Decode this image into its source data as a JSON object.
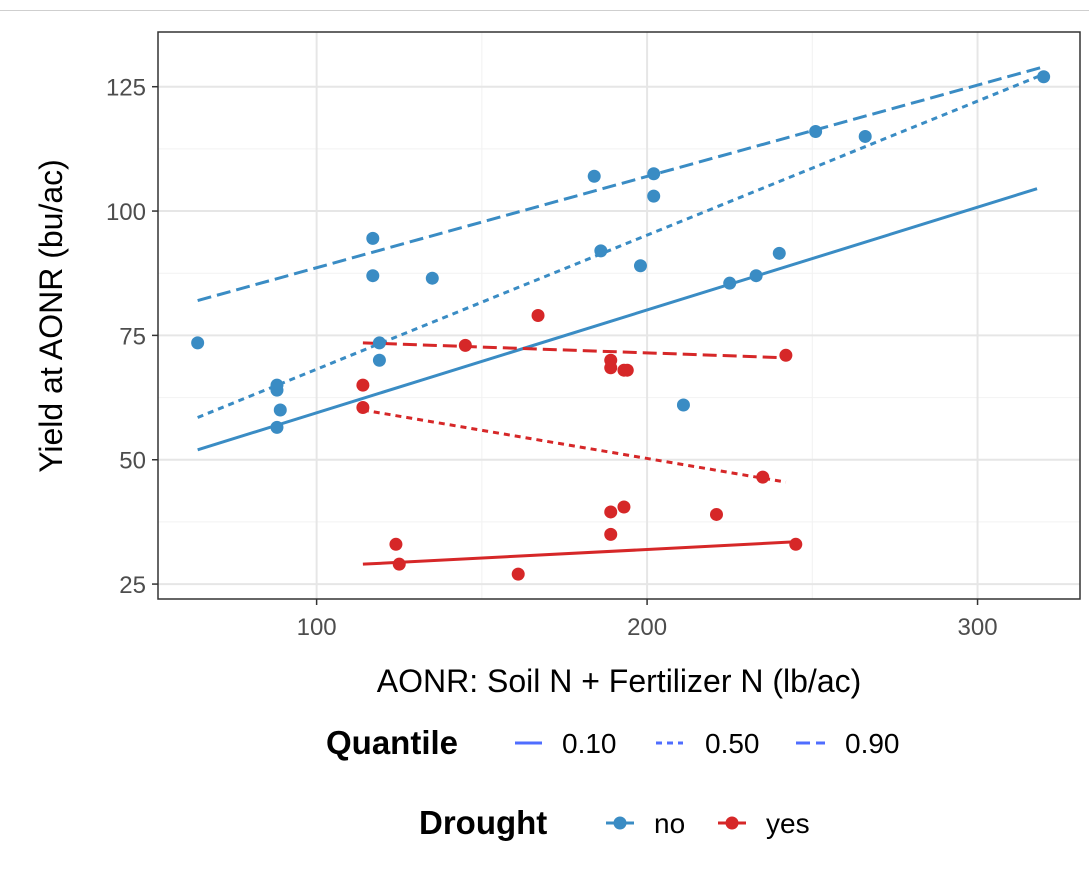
{
  "chart_data": {
    "type": "scatter",
    "title": "",
    "xlabel": "AONR: Soil N + Fertilizer N (lb/ac)",
    "ylabel": "Yield at AONR (bu/ac)",
    "xlim": [
      52,
      331
    ],
    "ylim": [
      22,
      136
    ],
    "xticks": [
      100,
      200,
      300
    ],
    "yticks": [
      25,
      50,
      75,
      100,
      125
    ],
    "grid": true,
    "colors": {
      "no": "#3a8cc4",
      "yes": "#d62728",
      "legend_line": "#4f6dff"
    },
    "series": [
      {
        "name": "no",
        "points": [
          [
            64,
            73.5
          ],
          [
            88,
            65
          ],
          [
            88,
            64
          ],
          [
            88,
            56.5
          ],
          [
            89,
            60
          ],
          [
            117,
            94.5
          ],
          [
            117,
            87
          ],
          [
            119,
            73.5
          ],
          [
            119,
            70
          ],
          [
            135,
            86.5
          ],
          [
            184,
            107
          ],
          [
            186,
            92
          ],
          [
            198,
            89
          ],
          [
            202,
            107.5
          ],
          [
            202,
            103
          ],
          [
            211,
            61
          ],
          [
            225,
            85.5
          ],
          [
            233,
            87
          ],
          [
            240,
            91.5
          ],
          [
            251,
            116
          ],
          [
            266,
            115
          ],
          [
            320,
            127
          ]
        ]
      },
      {
        "name": "yes",
        "points": [
          [
            114,
            65
          ],
          [
            114,
            60.5
          ],
          [
            124,
            33
          ],
          [
            125,
            29
          ],
          [
            145,
            73
          ],
          [
            161,
            27
          ],
          [
            167,
            79
          ],
          [
            189,
            70
          ],
          [
            189,
            68.5
          ],
          [
            189,
            39.5
          ],
          [
            189,
            35
          ],
          [
            193,
            68
          ],
          [
            193,
            40.5
          ],
          [
            194,
            68
          ],
          [
            221,
            39
          ],
          [
            235,
            46.5
          ],
          [
            242,
            71
          ],
          [
            245,
            33
          ]
        ]
      }
    ],
    "quantile_lines": [
      {
        "group": "no",
        "quantile": "0.10",
        "x": [
          64,
          318
        ],
        "y": [
          52,
          104.5
        ]
      },
      {
        "group": "no",
        "quantile": "0.50",
        "x": [
          64,
          320
        ],
        "y": [
          58.5,
          127.5
        ]
      },
      {
        "group": "no",
        "quantile": "0.90",
        "x": [
          64,
          320
        ],
        "y": [
          82,
          129
        ]
      },
      {
        "group": "yes",
        "quantile": "0.10",
        "x": [
          114,
          245
        ],
        "y": [
          29,
          33.5
        ]
      },
      {
        "group": "yes",
        "quantile": "0.50",
        "x": [
          114,
          242
        ],
        "y": [
          60,
          45.5
        ]
      },
      {
        "group": "yes",
        "quantile": "0.90",
        "x": [
          114,
          242
        ],
        "y": [
          73.5,
          70.5
        ]
      }
    ],
    "legends": [
      {
        "title": "Quantile",
        "placement": "bottom",
        "entries": [
          "0.10",
          "0.50",
          "0.90"
        ]
      },
      {
        "title": "Drought",
        "placement": "bottom",
        "entries": [
          "no",
          "yes"
        ]
      }
    ]
  }
}
